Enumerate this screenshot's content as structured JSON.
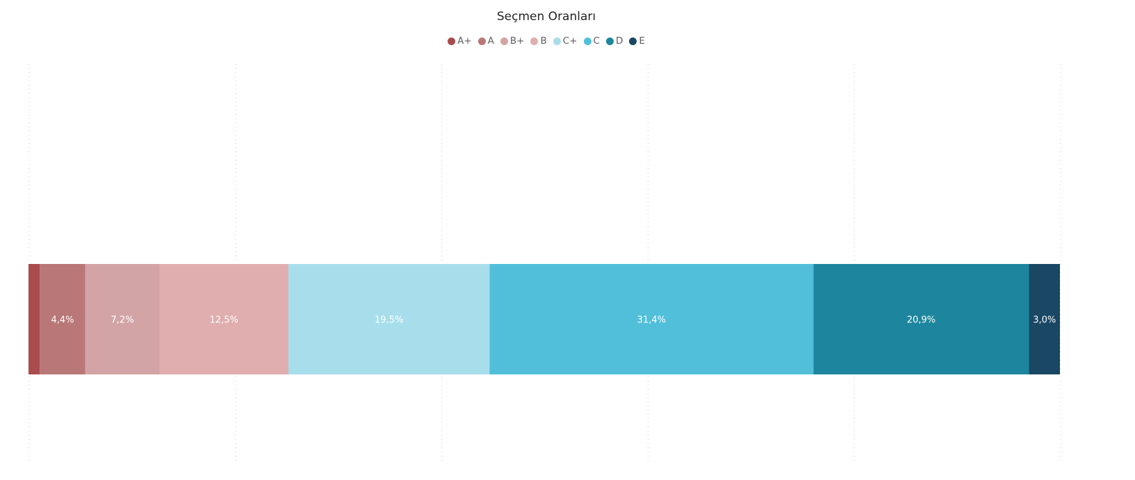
{
  "chart_data": {
    "type": "bar",
    "orientation": "horizontal",
    "stacking": "100%",
    "title": "Seçmen Oranları",
    "categories": [
      ""
    ],
    "series": [
      {
        "name": "A+",
        "values": [
          1.1
        ],
        "label": "",
        "color": "#a94c4d"
      },
      {
        "name": "A",
        "values": [
          4.4
        ],
        "label": "4,4%",
        "color": "#b97777"
      },
      {
        "name": "B+",
        "values": [
          7.2
        ],
        "label": "7,2%",
        "color": "#d3a4a5"
      },
      {
        "name": "B",
        "values": [
          12.5
        ],
        "label": "12,5%",
        "color": "#e0aeaf"
      },
      {
        "name": "C+",
        "values": [
          19.5
        ],
        "label": "19,5%",
        "color": "#a8deeb"
      },
      {
        "name": "C",
        "values": [
          31.4
        ],
        "label": "31,4%",
        "color": "#52bfda"
      },
      {
        "name": "D",
        "values": [
          20.9
        ],
        "label": "20,9%",
        "color": "#1d869e"
      },
      {
        "name": "E",
        "values": [
          3.0
        ],
        "label": "3,0%",
        "color": "#194764"
      }
    ],
    "xlim": [
      0,
      100
    ],
    "grid": true,
    "gridlines_at": [
      0,
      20,
      40,
      60,
      80,
      100
    ],
    "legend_position": "top-center",
    "label_color": "#ffffff"
  }
}
